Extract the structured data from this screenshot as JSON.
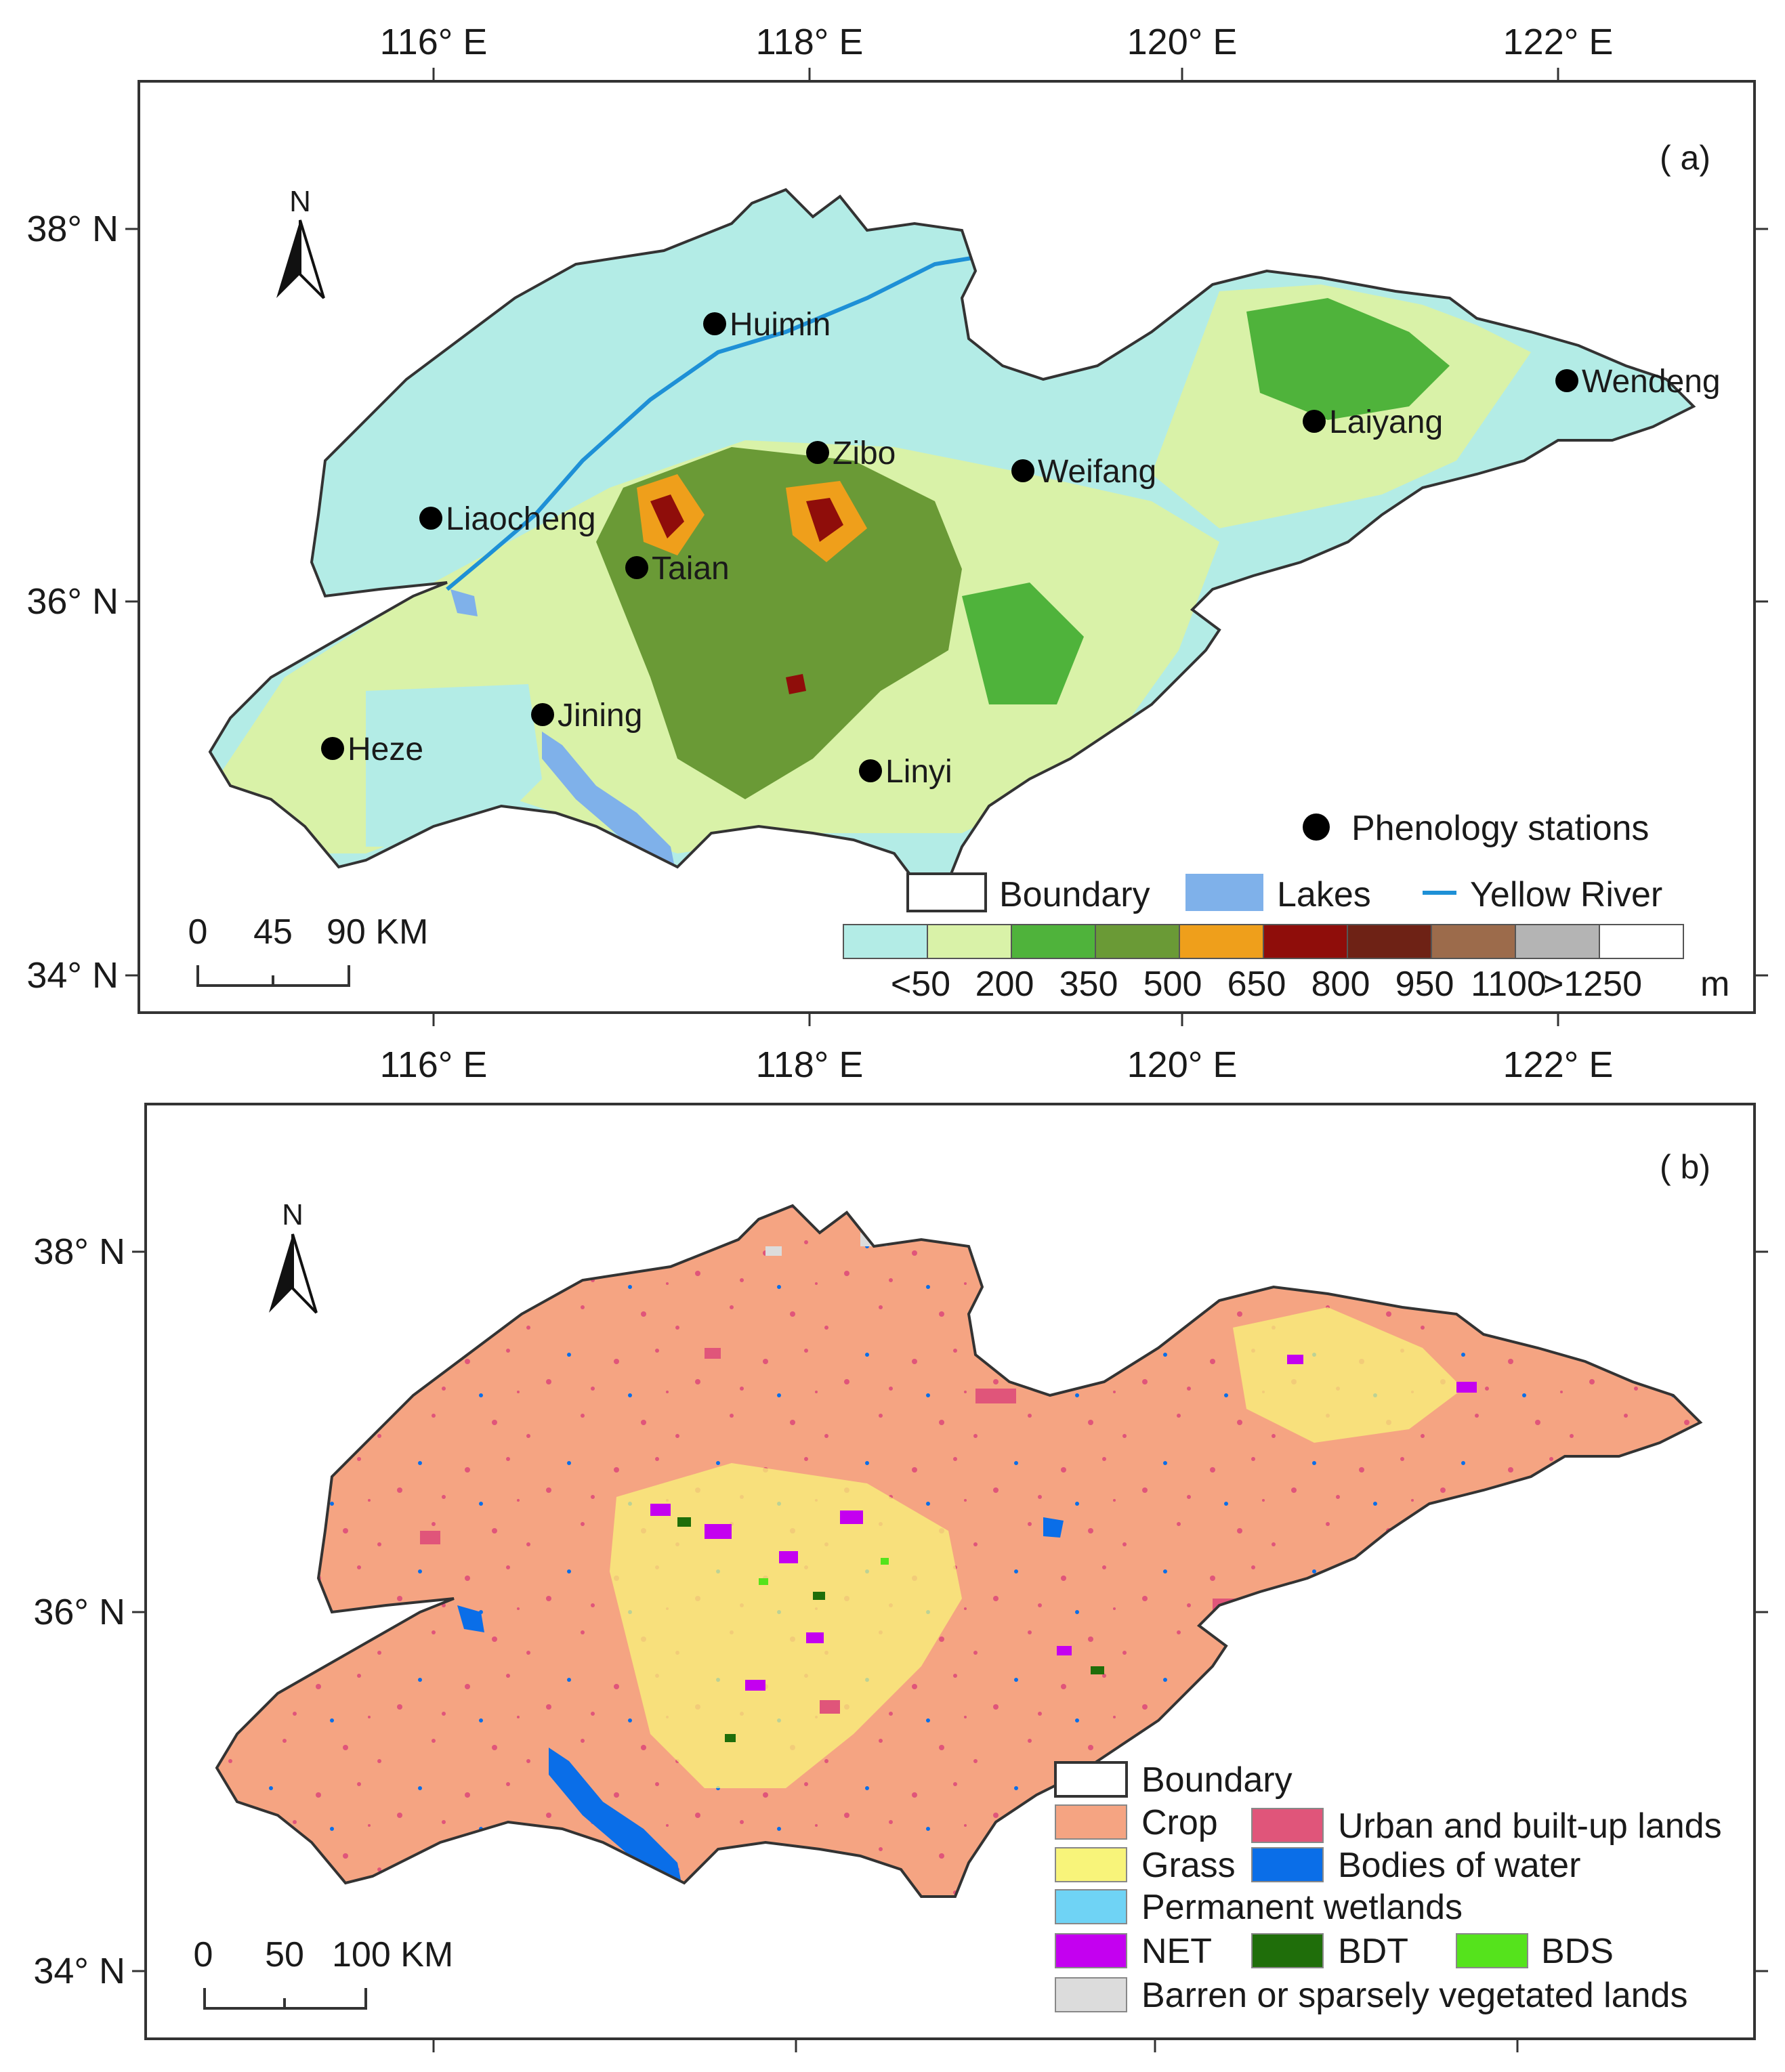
{
  "panel_a": {
    "label": "( a)",
    "top_ticks": [
      "116° E",
      "118° E",
      "120° E",
      "122° E"
    ],
    "bottom_ticks": [
      "116° E",
      "118° E",
      "120° E",
      "122° E"
    ],
    "left_ticks": [
      "38° N",
      "36° N",
      "34° N"
    ],
    "north_arrow": "N",
    "cities": [
      {
        "name": "Huimin"
      },
      {
        "name": "Zibo"
      },
      {
        "name": "Weifang"
      },
      {
        "name": "Laiyang"
      },
      {
        "name": "Wendeng"
      },
      {
        "name": "Liaocheng"
      },
      {
        "name": "Taian"
      },
      {
        "name": "Jining"
      },
      {
        "name": "Heze"
      },
      {
        "name": "Linyi"
      }
    ],
    "scale_bar": {
      "labels": [
        "0",
        "45",
        "90 KM"
      ]
    },
    "legend": {
      "stations": "Phenology stations",
      "boundary": "Boundary",
      "lakes": "Lakes",
      "river": "Yellow River",
      "elevation_colors": [
        "#b3ece6",
        "#d9f2a8",
        "#4fb33b",
        "#6a9a36",
        "#ef9f1b",
        "#8f0d0a",
        "#6e2215",
        "#9c6b4b",
        "#b4b4b4",
        "#ffffff"
      ],
      "elevation_labels": [
        "<50",
        "200",
        "350",
        "500",
        "650",
        "800",
        "950",
        "1100",
        ">1250"
      ],
      "unit": "m"
    },
    "colors": {
      "lowland": "#b3ece6",
      "plain": "#d9f2a8",
      "lakes": "#7fb1ea",
      "river": "#1e90d6"
    }
  },
  "panel_b": {
    "label": "( b)",
    "top_ticks": [
      "116° E",
      "118° E",
      "120° E",
      "122° E"
    ],
    "left_ticks": [
      "38° N",
      "36° N",
      "34° N"
    ],
    "north_arrow": "N",
    "scale_bar": {
      "labels": [
        "0",
        "50",
        "100 KM"
      ]
    },
    "legend": {
      "boundary": "Boundary",
      "crop": "Crop",
      "urban": "Urban and built-up lands",
      "grass": "Grass",
      "water": "Bodies of water",
      "wetlands": "Permanent wetlands",
      "net": "NET",
      "bdt": "BDT",
      "bds": "BDS",
      "barren": "Barren or sparsely vegetated lands"
    },
    "colors": {
      "crop": "#f5a482",
      "urban": "#e0557a",
      "grass": "#f8f47a",
      "water": "#0a6ee8",
      "wetlands": "#6fd3f5",
      "net": "#c400f0",
      "bdt": "#1f6e0a",
      "bds": "#55e31c",
      "barren": "#dcdcdc"
    }
  }
}
